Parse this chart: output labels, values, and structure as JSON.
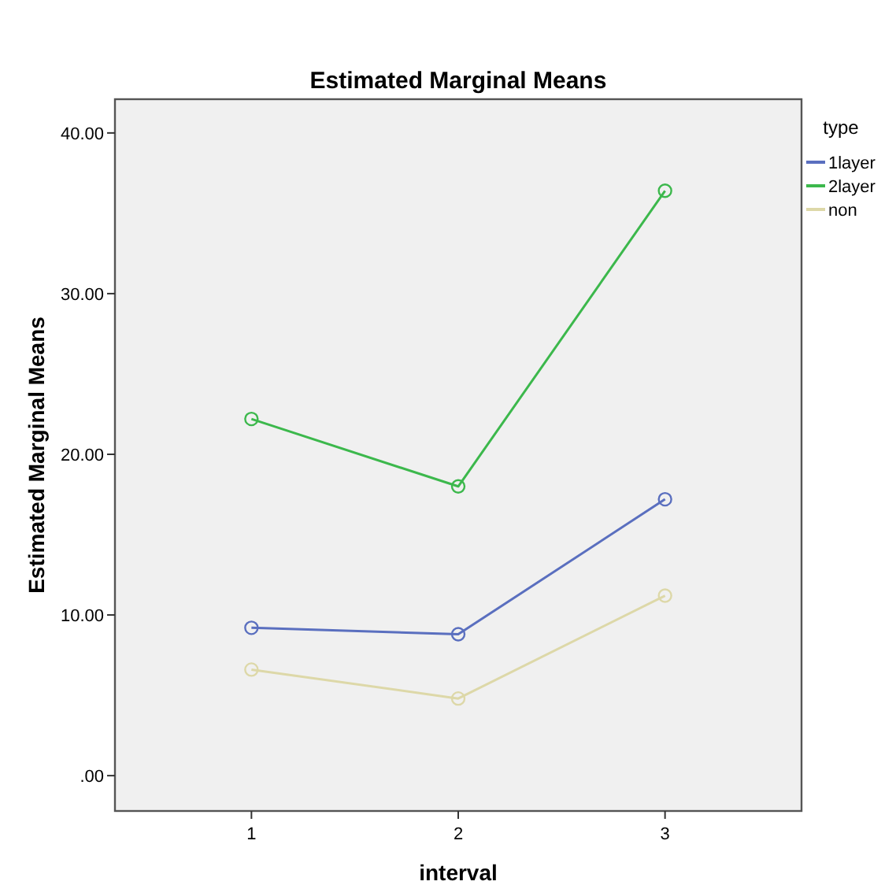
{
  "chart_data": {
    "type": "line",
    "title": "Estimated Marginal Means",
    "xlabel": "interval",
    "ylabel": "Estimated Marginal Means",
    "legend_title": "type",
    "x": [
      1,
      2,
      3
    ],
    "series": [
      {
        "name": "1layer",
        "color": "#5a6fbf",
        "values": [
          9.2,
          8.8,
          17.2
        ]
      },
      {
        "name": "2layer",
        "color": "#3cb84c",
        "values": [
          22.2,
          18.0,
          36.4
        ]
      },
      {
        "name": "non",
        "color": "#ddd8a8",
        "values": [
          6.6,
          4.8,
          11.2
        ]
      }
    ],
    "xlim": [
      0.34,
      3.66
    ],
    "xticks": [
      1,
      2,
      3
    ],
    "ylim": [
      -2.2,
      42.1
    ],
    "yticks": [
      {
        "value": 0,
        "label": ".00"
      },
      {
        "value": 10,
        "label": "10.00"
      },
      {
        "value": 20,
        "label": "20.00"
      },
      {
        "value": 30,
        "label": "30.00"
      },
      {
        "value": 40,
        "label": "40.00"
      }
    ],
    "grid": false,
    "legend": "right",
    "marker": "circle",
    "line_style": "solid"
  }
}
